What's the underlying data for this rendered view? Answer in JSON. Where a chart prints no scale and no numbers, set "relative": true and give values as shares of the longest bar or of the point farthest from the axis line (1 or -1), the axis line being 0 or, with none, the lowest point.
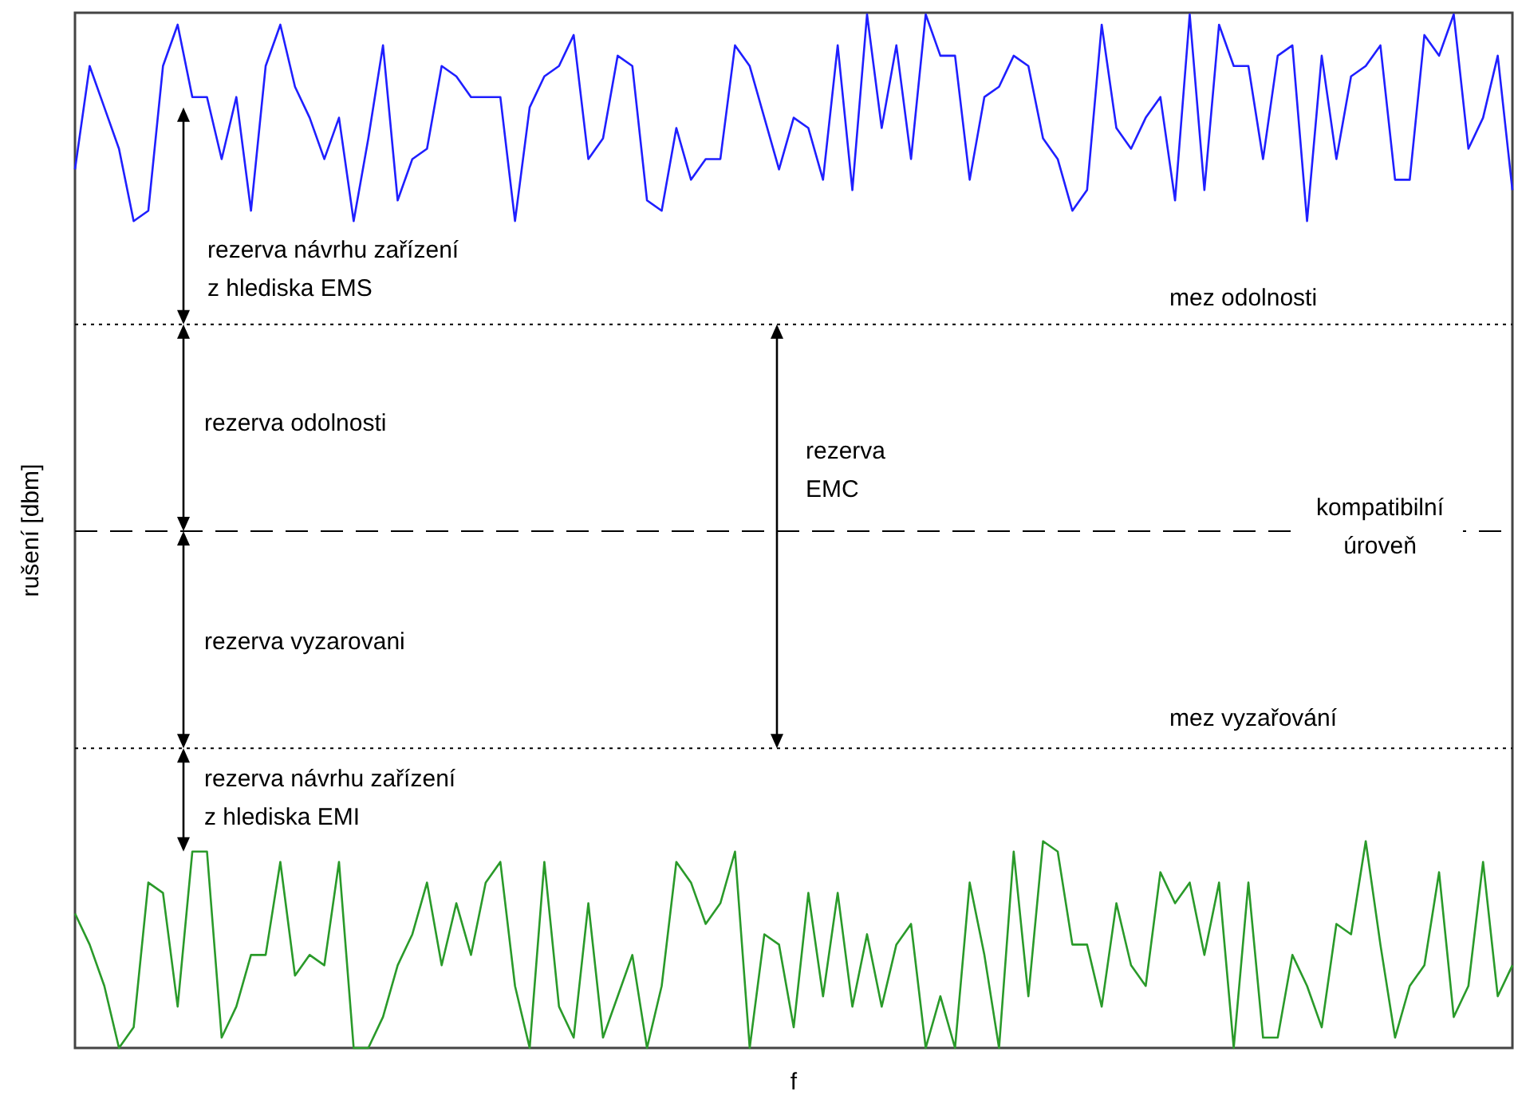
{
  "chart_data": {
    "type": "line",
    "relative": true,
    "xlabel": "f",
    "ylabel": "rušení [dbm]",
    "categories": [
      null,
      null,
      null,
      null,
      null,
      null,
      null,
      null,
      null,
      null,
      null,
      null,
      null,
      null,
      null,
      null,
      null,
      null,
      null,
      null,
      null,
      null,
      null,
      null,
      null,
      null,
      null,
      null,
      null,
      null,
      null,
      null,
      null,
      null,
      null,
      null,
      null,
      null,
      null,
      null,
      null,
      null,
      null,
      null,
      null,
      null,
      null,
      null,
      null,
      null,
      null,
      null,
      null,
      null,
      null,
      null,
      null,
      null,
      null,
      null,
      null,
      null,
      null,
      null,
      null,
      null,
      null,
      null,
      null,
      null,
      null,
      null,
      null,
      null,
      null,
      null,
      null,
      null,
      null,
      null,
      null,
      null,
      null,
      null,
      null,
      null,
      null,
      null,
      null,
      null,
      null,
      null,
      null,
      null,
      null,
      null,
      null,
      null,
      null
    ],
    "series": [
      {
        "color": "#1f1fff",
        "values": [
          0.85,
          0.95,
          0.91,
          0.87,
          0.8,
          0.81,
          0.95,
          0.99,
          0.92,
          0.92,
          0.86,
          0.92,
          0.81,
          0.95,
          0.99,
          0.93,
          0.9,
          0.86,
          0.9,
          0.8,
          0.88,
          0.97,
          0.82,
          0.86,
          0.87,
          0.95,
          0.94,
          0.92,
          0.92,
          0.92,
          0.8,
          0.91,
          0.94,
          0.95,
          0.98,
          0.86,
          0.88,
          0.96,
          0.95,
          0.82,
          0.81,
          0.89,
          0.84,
          0.86,
          0.86,
          0.97,
          0.95,
          0.9,
          0.85,
          0.9,
          0.89,
          0.84,
          0.97,
          0.83,
          1,
          0.89,
          0.97,
          0.86,
          1,
          0.96,
          0.96,
          0.84,
          0.92,
          0.93,
          0.96,
          0.95,
          0.88,
          0.86,
          0.81,
          0.83,
          0.99,
          0.89,
          0.87,
          0.9,
          0.92,
          0.82,
          1,
          0.83,
          0.99,
          0.95,
          0.95,
          0.86,
          0.96,
          0.97,
          0.8,
          0.96,
          0.86,
          0.94,
          0.95,
          0.97,
          0.84,
          0.84,
          0.98,
          0.96,
          1,
          0.87,
          0.9,
          0.96,
          0.83
        ]
      },
      {
        "color": "#2a9a2a",
        "values": [
          0.13,
          0.1,
          0.06,
          0,
          0.02,
          0.16,
          0.15,
          0.04,
          0.19,
          0.19,
          0.01,
          0.04,
          0.09,
          0.09,
          0.18,
          0.07,
          0.09,
          0.08,
          0.18,
          0,
          0,
          0.03,
          0.08,
          0.11,
          0.16,
          0.08,
          0.14,
          0.09,
          0.16,
          0.18,
          0.06,
          0,
          0.18,
          0.04,
          0.01,
          0.14,
          0.01,
          0.05,
          0.09,
          0,
          0.06,
          0.18,
          0.16,
          0.12,
          0.14,
          0.19,
          0,
          0.11,
          0.1,
          0.02,
          0.15,
          0.05,
          0.15,
          0.04,
          0.11,
          0.04,
          0.1,
          0.12,
          0,
          0.05,
          0,
          0.16,
          0.09,
          0,
          0.19,
          0.05,
          0.2,
          0.19,
          0.1,
          0.1,
          0.04,
          0.14,
          0.08,
          0.06,
          0.17,
          0.14,
          0.16,
          0.09,
          0.16,
          0,
          0.16,
          0.01,
          0.01,
          0.09,
          0.06,
          0.02,
          0.12,
          0.11,
          0.2,
          0.1,
          0.01,
          0.06,
          0.08,
          0.17,
          0.03,
          0.06,
          0.18,
          0.05,
          0.08
        ]
      }
    ],
    "ref_lines": [
      {
        "axis": "y",
        "value": 0.7,
        "label": "mez odolnosti",
        "line_style": "dotted"
      },
      {
        "axis": "y",
        "value": 0.5,
        "label": "kompatibilní\núroveň",
        "line_style": "dashed"
      },
      {
        "axis": "y",
        "value": 0.29,
        "label": "mez vyzařování",
        "line_style": "dotted"
      }
    ],
    "annotations": [
      "rezerva návrhu zařízení\nz hlediska EMS",
      "rezerva odolnosti",
      "rezerva vyzarovani",
      "rezerva návrhu zařízení\nz hlediska EMI",
      "rezerva\nEMC"
    ]
  }
}
